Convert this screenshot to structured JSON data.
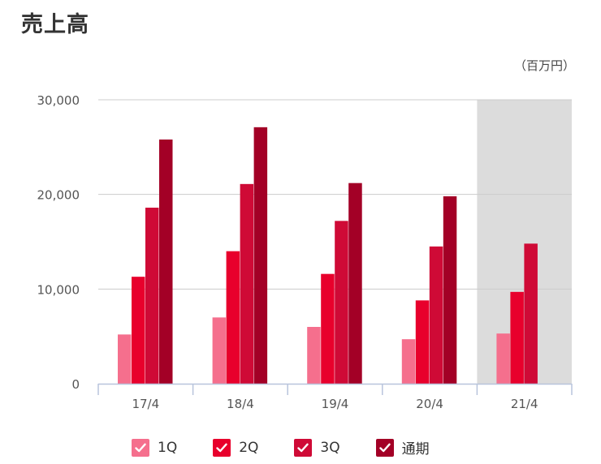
{
  "header": {
    "title": "売上高",
    "unit": "（百万円）"
  },
  "colors": {
    "q1": "#f56f8d",
    "q2": "#e8002c",
    "q3": "#cf0a36",
    "full": "#a30026",
    "forecast_bg": "#dcdcdc",
    "grid": "#cccccc",
    "axis": "#b8c4dc"
  },
  "legend": {
    "items": [
      {
        "label": "1Q",
        "color": "#f56f8d"
      },
      {
        "label": "2Q",
        "color": "#e8002c"
      },
      {
        "label": "3Q",
        "color": "#cf0a36"
      },
      {
        "label": "通期",
        "color": "#a30026"
      }
    ]
  },
  "chart_data": {
    "type": "bar",
    "title": "売上高",
    "unit": "（百万円）",
    "categories": [
      "17/4",
      "18/4",
      "19/4",
      "20/4",
      "21/4"
    ],
    "ylim": [
      0,
      30000
    ],
    "yticks": [
      0,
      10000,
      20000,
      30000
    ],
    "ytick_labels": [
      "0",
      "10,000",
      "20,000",
      "30,000"
    ],
    "grid": true,
    "legend_position": "bottom",
    "shaded_category": "21/4",
    "series": [
      {
        "name": "1Q",
        "values": [
          5200,
          7000,
          6000,
          4700,
          5300
        ]
      },
      {
        "name": "2Q",
        "values": [
          11300,
          14000,
          11600,
          8800,
          9700
        ]
      },
      {
        "name": "3Q",
        "values": [
          18600,
          21100,
          17200,
          14500,
          14800
        ]
      },
      {
        "name": "通期",
        "values": [
          25800,
          27100,
          21200,
          19800,
          null
        ]
      }
    ]
  }
}
